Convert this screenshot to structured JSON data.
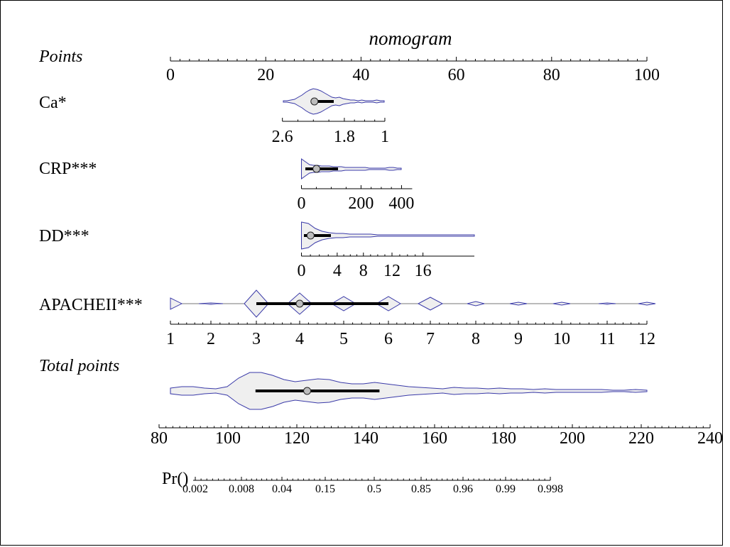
{
  "chart_data": {
    "type": "nomogram",
    "title": "nomogram",
    "scales": [
      {
        "key": "points",
        "label": "Points",
        "italic": true,
        "ticks": [
          "0",
          "20",
          "40",
          "60",
          "80",
          "100"
        ],
        "values": [
          0,
          20,
          40,
          60,
          80,
          100
        ]
      },
      {
        "key": "ca",
        "label": "Ca*",
        "ticks": [
          "2.6",
          "1.8",
          "1"
        ],
        "values": [
          2.6,
          1.8,
          1.0
        ],
        "points_at": [
          23.5,
          36.5,
          45
        ],
        "median": 2.1
      },
      {
        "key": "crp",
        "label": "CRP***",
        "ticks": [
          "0",
          "200",
          "400"
        ],
        "values": [
          0,
          200,
          400
        ],
        "points_at": [
          27.5,
          40,
          48.5
        ],
        "median": 60
      },
      {
        "key": "dd",
        "label": "DD***",
        "ticks": [
          "0",
          "4",
          "8",
          "12",
          "16"
        ],
        "values": [
          0,
          4,
          8,
          12,
          16
        ],
        "points_at": [
          27.5,
          35,
          40.5,
          46.5,
          53
        ],
        "median": 1.2
      },
      {
        "key": "apache",
        "label": "APACHEII***",
        "ticks": [
          "1",
          "2",
          "3",
          "4",
          "5",
          "6",
          "7",
          "8",
          "9",
          "10",
          "11",
          "12"
        ],
        "values": [
          1,
          2,
          3,
          4,
          5,
          6,
          7,
          8,
          9,
          10,
          11,
          12
        ],
        "points_range": [
          0,
          100
        ],
        "median": 4
      }
    ],
    "total_points": {
      "label": "Total points",
      "italic": true,
      "ticks": [
        "80",
        "100",
        "120",
        "140",
        "160",
        "180",
        "200",
        "220",
        "240"
      ],
      "values": [
        80,
        100,
        120,
        140,
        160,
        180,
        200,
        220,
        240
      ],
      "median": 123,
      "iqr": [
        108,
        144
      ]
    },
    "probability": {
      "label": "Pr()",
      "ticks": [
        "0.002",
        "0.008",
        "0.04",
        "0.15",
        "0.5",
        "0.85",
        "0.96",
        "0.99",
        "0.998"
      ],
      "values": [
        0.002,
        0.008,
        0.04,
        0.15,
        0.5,
        0.85,
        0.96,
        0.99,
        0.998
      ]
    }
  }
}
